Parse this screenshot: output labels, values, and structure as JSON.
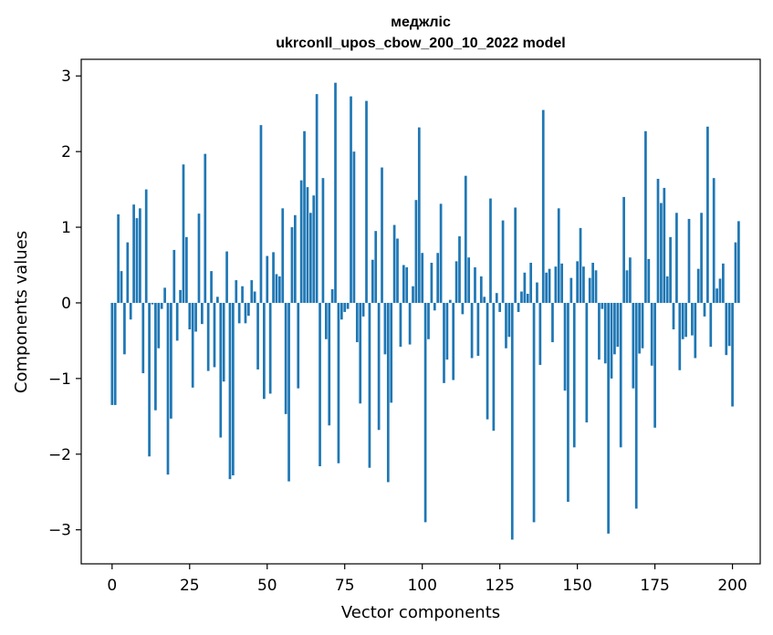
{
  "chart_data": {
    "type": "bar",
    "title": "меджліс",
    "subtitle": "ukrconll_upos_cbow_200_10_2022 model",
    "xlabel": "Vector components",
    "ylabel": "Components values",
    "xlim": [
      -9.95,
      208.95
    ],
    "ylim": [
      -3.45,
      3.22
    ],
    "xticks": [
      0,
      25,
      50,
      75,
      100,
      125,
      150,
      175,
      200
    ],
    "yticks": [
      -3,
      -2,
      -1,
      0,
      1,
      2,
      3
    ],
    "xtick_labels": [
      "0",
      "25",
      "50",
      "75",
      "100",
      "125",
      "150",
      "175",
      "200"
    ],
    "ytick_labels": [
      "−3",
      "−2",
      "−1",
      "0",
      "1",
      "2",
      "3"
    ],
    "bar_color": "#1f77b4",
    "grid": false,
    "values": [
      -1.35,
      -1.35,
      1.17,
      0.42,
      -0.68,
      0.8,
      -0.22,
      1.3,
      1.12,
      1.25,
      -0.93,
      1.5,
      -2.03,
      -0.02,
      -1.42,
      -0.6,
      -0.08,
      0.2,
      -2.27,
      -1.53,
      0.7,
      -0.5,
      0.17,
      1.83,
      0.87,
      -0.35,
      -1.12,
      -0.38,
      1.18,
      -0.28,
      1.97,
      -0.9,
      0.42,
      -0.85,
      0.08,
      -1.78,
      -1.04,
      0.68,
      -2.33,
      -2.28,
      0.3,
      -0.27,
      0.22,
      -0.27,
      -0.17,
      0.3,
      0.15,
      -0.88,
      2.35,
      -1.27,
      0.62,
      -1.2,
      0.67,
      0.38,
      0.35,
      1.25,
      -1.47,
      -2.36,
      1.0,
      1.16,
      -1.13,
      1.62,
      2.27,
      1.53,
      1.19,
      1.42,
      2.76,
      -2.16,
      1.65,
      -0.48,
      -1.62,
      0.18,
      2.91,
      -2.12,
      -0.22,
      -0.12,
      -0.08,
      2.73,
      2.0,
      -0.52,
      -1.33,
      -0.18,
      2.67,
      -2.18,
      0.57,
      0.95,
      -1.68,
      1.79,
      -0.68,
      -2.37,
      -1.32,
      1.03,
      0.85,
      -0.58,
      0.5,
      0.47,
      -0.55,
      0.22,
      1.36,
      2.32,
      0.66,
      -2.9,
      -0.48,
      0.53,
      -0.1,
      0.66,
      1.31,
      -1.06,
      -0.75,
      0.04,
      -1.02,
      0.55,
      0.88,
      -0.15,
      1.68,
      0.6,
      -0.73,
      0.47,
      -0.7,
      0.35,
      0.08,
      -1.54,
      1.38,
      -1.69,
      0.13,
      -0.12,
      1.09,
      -0.6,
      -0.45,
      -3.13,
      1.26,
      -0.12,
      0.15,
      0.4,
      0.12,
      0.53,
      -2.9,
      0.27,
      -0.82,
      2.55,
      0.4,
      0.45,
      -0.52,
      0.48,
      1.25,
      0.52,
      -1.16,
      -2.63,
      0.33,
      -1.91,
      0.55,
      0.99,
      0.48,
      -1.58,
      0.33,
      0.53,
      0.43,
      -0.75,
      -0.08,
      -0.8,
      -3.05,
      -1.0,
      -0.68,
      -0.58,
      -1.91,
      1.4,
      0.43,
      0.6,
      -1.13,
      -2.72,
      -0.67,
      -0.6,
      2.27,
      0.58,
      -0.83,
      -1.65,
      1.64,
      1.32,
      1.52,
      0.35,
      0.87,
      -0.35,
      1.19,
      -0.89,
      -0.48,
      -0.45,
      1.11,
      -0.43,
      -0.73,
      0.45,
      1.19,
      -0.18,
      2.33,
      -0.58,
      1.65,
      0.19,
      0.32,
      0.52,
      -0.69,
      -0.57,
      -1.37,
      0.8,
      1.08
    ]
  }
}
